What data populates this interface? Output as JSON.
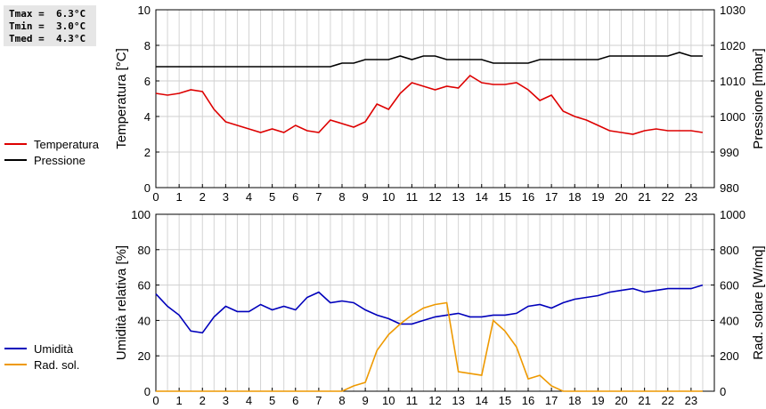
{
  "stats": [
    {
      "label": "Tmax",
      "value": "6.3°C"
    },
    {
      "label": "Tmin",
      "value": "3.0°C"
    },
    {
      "label": "Tmed",
      "value": "4.3°C"
    }
  ],
  "chart_data": [
    {
      "type": "line",
      "xlim": [
        0,
        24
      ],
      "x_tick_labels": [
        "0",
        "1",
        "2",
        "3",
        "4",
        "5",
        "6",
        "7",
        "8",
        "9",
        "10",
        "11",
        "12",
        "13",
        "14",
        "15",
        "16",
        "17",
        "18",
        "19",
        "20",
        "21",
        "22",
        "23"
      ],
      "ylabel_left": "Temperatura [°C]",
      "ylabel_right": "Pressione [mbar]",
      "ylim_left": [
        0,
        10
      ],
      "ylim_right": [
        980,
        1030
      ],
      "y_ticks_left": [
        0,
        2,
        4,
        6,
        8,
        10
      ],
      "y_ticks_right": [
        980,
        990,
        1000,
        1010,
        1020,
        1030
      ],
      "grid": true,
      "legend_placement": "left",
      "series": [
        {
          "name": "Temperatura",
          "axis": "left",
          "color": "#dd0000",
          "x": [
            0,
            0.5,
            1,
            1.5,
            2,
            2.5,
            3,
            3.5,
            4,
            4.5,
            5,
            5.5,
            6,
            6.5,
            7,
            7.5,
            8,
            8.5,
            9,
            9.5,
            10,
            10.5,
            11,
            11.5,
            12,
            12.5,
            13,
            13.5,
            14,
            14.5,
            15,
            15.5,
            16,
            16.5,
            17,
            17.5,
            18,
            18.5,
            19,
            19.5,
            20,
            20.5,
            21,
            21.5,
            22,
            22.5,
            23,
            23.5
          ],
          "values": [
            5.3,
            5.2,
            5.3,
            5.5,
            5.4,
            4.4,
            3.7,
            3.5,
            3.3,
            3.1,
            3.3,
            3.1,
            3.5,
            3.2,
            3.1,
            3.8,
            3.6,
            3.4,
            3.7,
            4.7,
            4.4,
            5.3,
            5.9,
            5.7,
            5.5,
            5.7,
            5.6,
            6.3,
            5.9,
            5.8,
            5.8,
            5.9,
            5.5,
            4.9,
            5.2,
            4.3,
            4.0,
            3.8,
            3.5,
            3.2,
            3.1,
            3.0,
            3.2,
            3.3,
            3.2,
            3.2,
            3.2,
            3.1
          ]
        },
        {
          "name": "Pressione",
          "axis": "right",
          "color": "#000000",
          "x": [
            0,
            0.5,
            1,
            1.5,
            2,
            2.5,
            3,
            3.5,
            4,
            4.5,
            5,
            5.5,
            6,
            6.5,
            7,
            7.5,
            8,
            8.5,
            9,
            9.5,
            10,
            10.5,
            11,
            11.5,
            12,
            12.5,
            13,
            13.5,
            14,
            14.5,
            15,
            15.5,
            16,
            16.5,
            17,
            17.5,
            18,
            18.5,
            19,
            19.5,
            20,
            20.5,
            21,
            21.5,
            22,
            22.5,
            23,
            23.5
          ],
          "values": [
            1014,
            1014,
            1014,
            1014,
            1014,
            1014,
            1014,
            1014,
            1014,
            1014,
            1014,
            1014,
            1014,
            1014,
            1014,
            1014,
            1015,
            1015,
            1016,
            1016,
            1016,
            1017,
            1016,
            1017,
            1017,
            1016,
            1016,
            1016,
            1016,
            1015,
            1015,
            1015,
            1015,
            1016,
            1016,
            1016,
            1016,
            1016,
            1016,
            1017,
            1017,
            1017,
            1017,
            1017,
            1017,
            1018,
            1017,
            1017
          ]
        }
      ]
    },
    {
      "type": "line",
      "xlim": [
        0,
        24
      ],
      "x_tick_labels": [
        "0",
        "1",
        "2",
        "3",
        "4",
        "5",
        "6",
        "7",
        "8",
        "9",
        "10",
        "11",
        "12",
        "13",
        "14",
        "15",
        "16",
        "17",
        "18",
        "19",
        "20",
        "21",
        "22",
        "23"
      ],
      "ylabel_left": "Umidità relativa [%]",
      "ylabel_right": "Rad. solare [W/mq]",
      "ylim_left": [
        0,
        100
      ],
      "ylim_right": [
        0,
        1000
      ],
      "y_ticks_left": [
        0,
        20,
        40,
        60,
        80,
        100
      ],
      "y_ticks_right": [
        0,
        200,
        400,
        600,
        800,
        1000
      ],
      "grid": true,
      "legend_placement": "left",
      "series": [
        {
          "name": "Umidità",
          "axis": "left",
          "color": "#0000bb",
          "x": [
            0,
            0.5,
            1,
            1.5,
            2,
            2.5,
            3,
            3.5,
            4,
            4.5,
            5,
            5.5,
            6,
            6.5,
            7,
            7.5,
            8,
            8.5,
            9,
            9.5,
            10,
            10.5,
            11,
            11.5,
            12,
            12.5,
            13,
            13.5,
            14,
            14.5,
            15,
            15.5,
            16,
            16.5,
            17,
            17.5,
            18,
            18.5,
            19,
            19.5,
            20,
            20.5,
            21,
            21.5,
            22,
            22.5,
            23,
            23.5
          ],
          "values": [
            55,
            48,
            43,
            34,
            33,
            42,
            48,
            45,
            45,
            49,
            46,
            48,
            46,
            53,
            56,
            50,
            51,
            50,
            46,
            43,
            41,
            38,
            38,
            40,
            42,
            43,
            44,
            42,
            42,
            43,
            43,
            44,
            48,
            49,
            47,
            50,
            52,
            53,
            54,
            56,
            57,
            58,
            56,
            57,
            58,
            58,
            58,
            60
          ]
        },
        {
          "name": "Rad. sol.",
          "axis": "right",
          "color": "#ee9900",
          "x": [
            0,
            0.5,
            1,
            1.5,
            2,
            2.5,
            3,
            3.5,
            4,
            4.5,
            5,
            5.5,
            6,
            6.5,
            7,
            7.5,
            8,
            8.5,
            9,
            9.5,
            10,
            10.5,
            11,
            11.5,
            12,
            12.5,
            13,
            13.5,
            14,
            14.5,
            15,
            15.5,
            16,
            16.5,
            17,
            17.5,
            18,
            18.5,
            19,
            19.5,
            20,
            20.5,
            21,
            21.5,
            22,
            22.5,
            23,
            23.5
          ],
          "values": [
            0,
            0,
            0,
            0,
            0,
            0,
            0,
            0,
            0,
            0,
            0,
            0,
            0,
            0,
            0,
            0,
            0,
            30,
            50,
            230,
            320,
            380,
            430,
            470,
            490,
            500,
            110,
            100,
            90,
            400,
            340,
            250,
            70,
            90,
            30,
            0,
            0,
            0,
            0,
            0,
            0,
            0,
            0,
            0,
            0,
            0,
            0,
            0
          ]
        }
      ]
    }
  ]
}
